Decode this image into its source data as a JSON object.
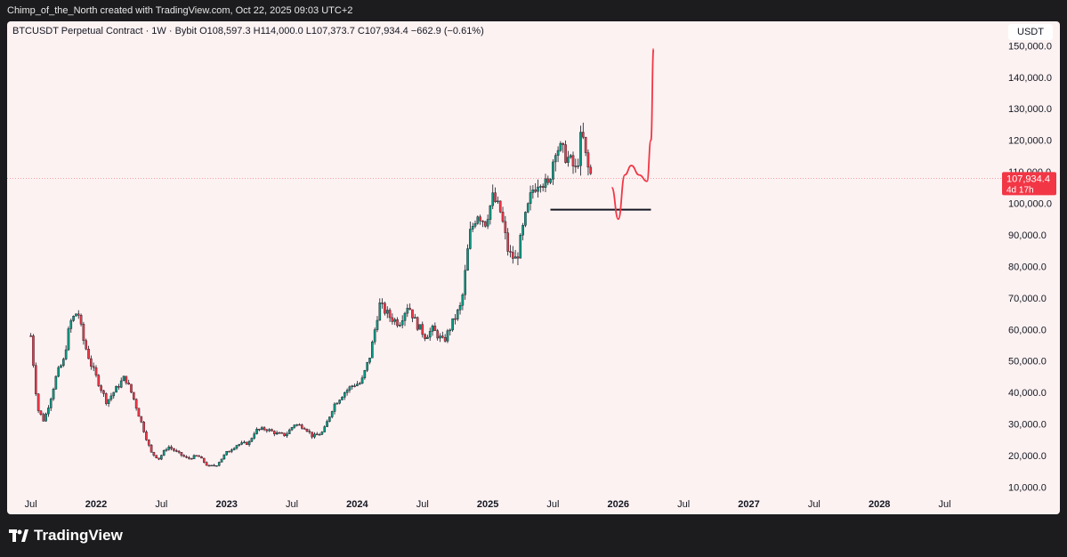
{
  "topbar": {
    "text": "Chimp_of_the_North created with TradingView.com, Oct 22, 2025 09:03 UTC+2"
  },
  "header": {
    "symbol_line": "BTCUSDT Perpetual Contract · 1W · Bybit",
    "ohlc_line": "O108,597.3  H114,000.0  L107,373.7  C107,934.4  −662.9 (−0.61%)"
  },
  "currency_label": "USDT",
  "price_tag": {
    "price": "107,934.4",
    "countdown": "4d 17h"
  },
  "footer": {
    "brand": "TradingView"
  },
  "chart_data": {
    "type": "candlestick",
    "symbol": "BTCUSDT",
    "interval": "1W",
    "exchange": "Bybit",
    "y_axis": {
      "range": [
        8000,
        153000
      ],
      "ticks": [
        "150,000.0",
        "140,000.0",
        "130,000.0",
        "120,000.0",
        "110,000.0",
        "100,000.0",
        "90,000.0",
        "80,000.0",
        "70,000.0",
        "60,000.0",
        "50,000.0",
        "40,000.0",
        "30,000.0",
        "20,000.0",
        "10,000.0"
      ]
    },
    "x_axis": {
      "ticks": [
        "Jul",
        "2022",
        "Jul",
        "2023",
        "Jul",
        "2024",
        "Jul",
        "2025",
        "Jul",
        "2026",
        "Jul",
        "2027",
        "Jul",
        "2028",
        "Jul"
      ]
    },
    "current_price": 107934.4,
    "price_path": [
      [
        2021.5,
        58000
      ],
      [
        2021.55,
        35000
      ],
      [
        2021.6,
        31000
      ],
      [
        2021.65,
        38000
      ],
      [
        2021.7,
        46000
      ],
      [
        2021.75,
        50000
      ],
      [
        2021.8,
        62000
      ],
      [
        2021.86,
        66000
      ],
      [
        2021.9,
        57000
      ],
      [
        2021.96,
        49000
      ],
      [
        2022.02,
        43000
      ],
      [
        2022.08,
        37000
      ],
      [
        2022.15,
        41000
      ],
      [
        2022.22,
        45000
      ],
      [
        2022.28,
        39000
      ],
      [
        2022.35,
        30000
      ],
      [
        2022.42,
        21000
      ],
      [
        2022.48,
        19000
      ],
      [
        2022.55,
        23000
      ],
      [
        2022.62,
        21000
      ],
      [
        2022.7,
        19000
      ],
      [
        2022.78,
        20000
      ],
      [
        2022.86,
        16500
      ],
      [
        2022.92,
        17000
      ],
      [
        2023.0,
        21000
      ],
      [
        2023.08,
        23500
      ],
      [
        2023.17,
        24000
      ],
      [
        2023.22,
        28000
      ],
      [
        2023.3,
        28500
      ],
      [
        2023.38,
        27000
      ],
      [
        2023.45,
        26500
      ],
      [
        2023.52,
        30000
      ],
      [
        2023.6,
        29000
      ],
      [
        2023.66,
        26000
      ],
      [
        2023.74,
        27500
      ],
      [
        2023.82,
        36000
      ],
      [
        2023.9,
        40000
      ],
      [
        2023.97,
        42500
      ],
      [
        2024.03,
        43000
      ],
      [
        2024.1,
        52000
      ],
      [
        2024.17,
        68000
      ],
      [
        2024.25,
        64000
      ],
      [
        2024.32,
        62000
      ],
      [
        2024.39,
        68000
      ],
      [
        2024.45,
        62000
      ],
      [
        2024.52,
        58000
      ],
      [
        2024.58,
        60000
      ],
      [
        2024.66,
        56000
      ],
      [
        2024.74,
        63000
      ],
      [
        2024.8,
        68000
      ],
      [
        2024.86,
        90000
      ],
      [
        2024.92,
        97000
      ],
      [
        2024.98,
        94000
      ],
      [
        2025.04,
        102000
      ],
      [
        2025.1,
        97000
      ],
      [
        2025.16,
        84000
      ],
      [
        2025.22,
        82000
      ],
      [
        2025.28,
        94000
      ],
      [
        2025.34,
        104000
      ],
      [
        2025.4,
        108000
      ],
      [
        2025.46,
        105000
      ],
      [
        2025.52,
        118000
      ],
      [
        2025.56,
        117000
      ],
      [
        2025.62,
        114000
      ],
      [
        2025.68,
        110000
      ],
      [
        2025.72,
        123000
      ],
      [
        2025.76,
        112000
      ],
      [
        2025.8,
        107934
      ]
    ],
    "projection": [
      [
        2025.95,
        105000
      ],
      [
        2026.0,
        95000
      ],
      [
        2026.05,
        109000
      ],
      [
        2026.1,
        112000
      ],
      [
        2026.16,
        109000
      ],
      [
        2026.22,
        107000
      ],
      [
        2026.25,
        120000
      ],
      [
        2026.27,
        149000
      ]
    ],
    "support_line": {
      "price": 98000,
      "from": 2025.48,
      "to": 2026.25
    }
  }
}
